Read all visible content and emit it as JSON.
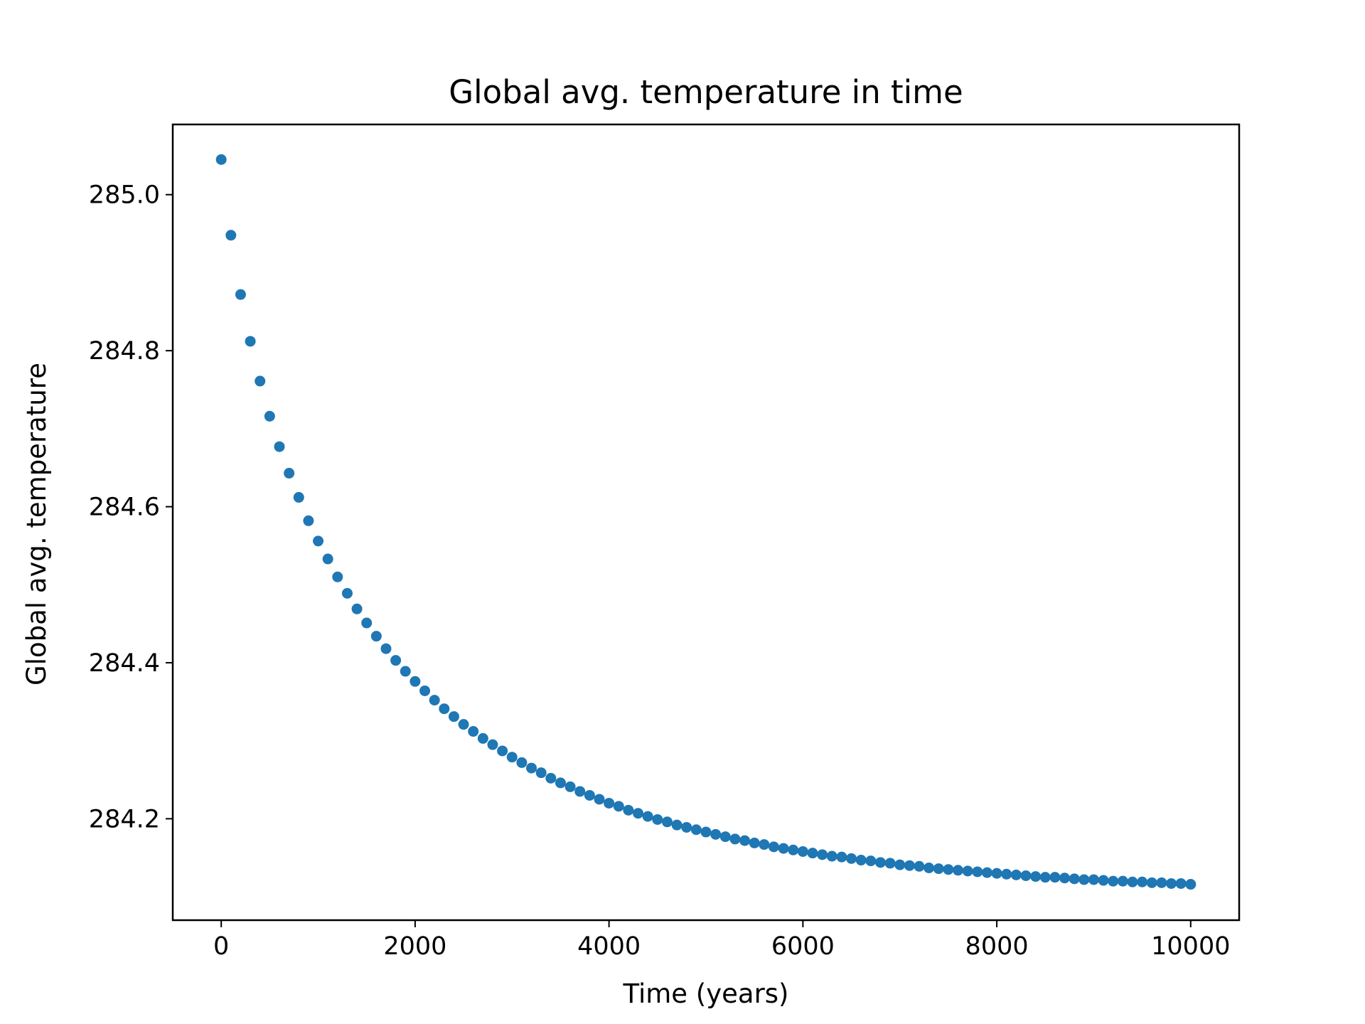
{
  "chart_data": {
    "type": "scatter",
    "title": "Global avg. temperature in time",
    "xlabel": "Time (years)",
    "ylabel": "Global avg. temperature",
    "xlim": [
      -500,
      10500
    ],
    "ylim": [
      284.07,
      285.09
    ],
    "x_ticks": [
      0,
      2000,
      4000,
      6000,
      8000,
      10000
    ],
    "x_tick_labels": [
      "0",
      "2000",
      "4000",
      "6000",
      "8000",
      "10000"
    ],
    "y_ticks": [
      284.2,
      284.4,
      284.6,
      284.8,
      285.0
    ],
    "y_tick_labels": [
      "284.2",
      "284.4",
      "284.6",
      "284.8",
      "285.0"
    ],
    "grid": false,
    "series": [
      {
        "color": "#1f77b4",
        "x_start": 0,
        "x_step": 100,
        "values": [
          285.045,
          284.948,
          284.872,
          284.812,
          284.761,
          284.716,
          284.677,
          284.643,
          284.612,
          284.582,
          284.556,
          284.533,
          284.51,
          284.489,
          284.469,
          284.451,
          284.434,
          284.418,
          284.403,
          284.389,
          284.376,
          284.364,
          284.352,
          284.341,
          284.331,
          284.321,
          284.312,
          284.303,
          284.295,
          284.287,
          284.279,
          284.272,
          284.265,
          284.259,
          284.252,
          284.246,
          284.241,
          284.235,
          284.23,
          284.225,
          284.22,
          284.216,
          284.211,
          284.207,
          284.203,
          284.199,
          284.196,
          284.192,
          284.189,
          284.186,
          284.183,
          284.18,
          284.177,
          284.174,
          284.172,
          284.169,
          284.167,
          284.164,
          284.162,
          284.16,
          284.158,
          284.156,
          284.154,
          284.152,
          284.151,
          284.149,
          284.147,
          284.146,
          284.144,
          284.143,
          284.141,
          284.14,
          284.139,
          284.137,
          284.136,
          284.135,
          284.134,
          284.133,
          284.132,
          284.131,
          284.13,
          284.129,
          284.128,
          284.127,
          284.126,
          284.125,
          284.125,
          284.124,
          284.123,
          284.122,
          284.122,
          284.121,
          284.12,
          284.12,
          284.119,
          284.119,
          284.118,
          284.118,
          284.117,
          284.117,
          284.116
        ]
      }
    ]
  }
}
